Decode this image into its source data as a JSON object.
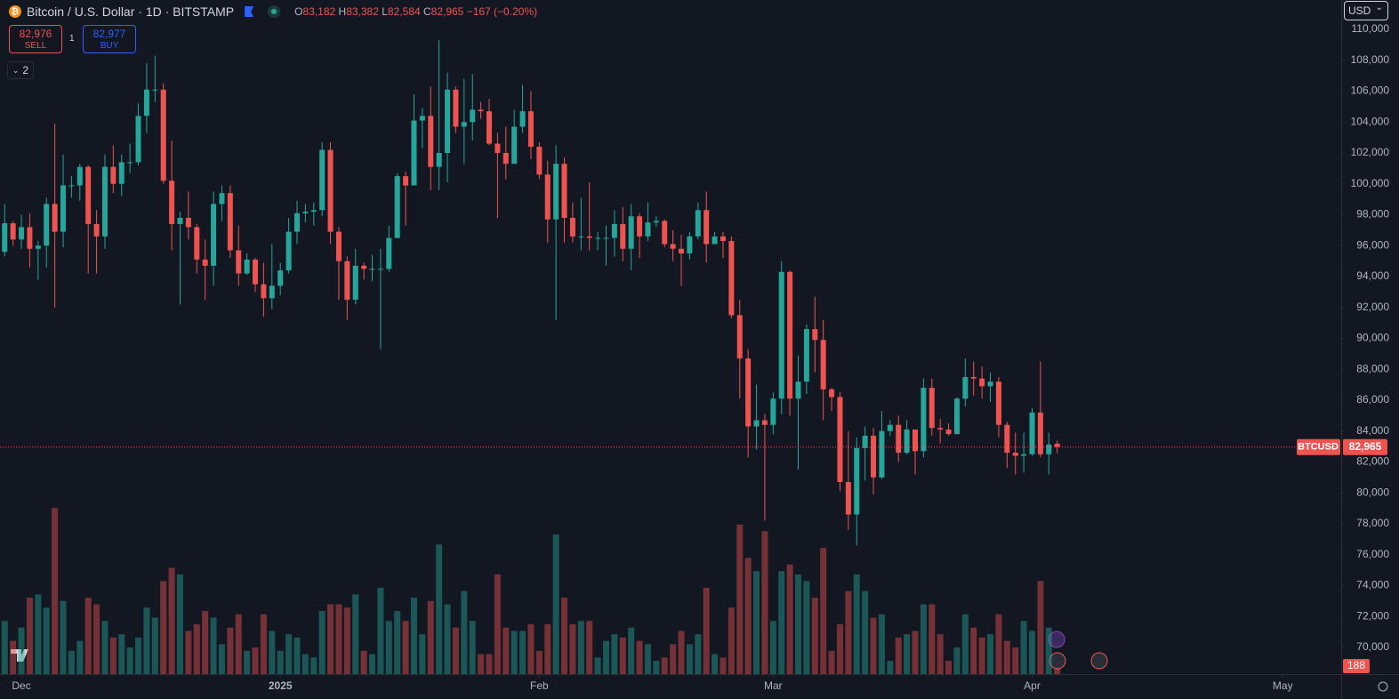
{
  "header": {
    "title": "Bitcoin / U.S. Dollar · 1D · BITSTAMP",
    "open_key": "O",
    "open": "83,182",
    "high_key": "H",
    "high": "83,382",
    "low_key": "L",
    "low": "82,584",
    "close_key": "C",
    "close": "82,965",
    "change": "−167 (−0.20%)"
  },
  "trade": {
    "sell_price": "82,976",
    "sell_label": "SELL",
    "spread": "1",
    "buy_price": "82,977",
    "buy_label": "BUY"
  },
  "indicators": {
    "count": "2"
  },
  "currency": "USD",
  "chart_data": {
    "type": "candlestick",
    "up_color": "#26a69a",
    "down_color": "#ef5350",
    "open": [
      95600,
      97450,
      96400,
      97200,
      95800,
      96000,
      98700,
      96900,
      99900,
      99900,
      101100,
      97400,
      96600,
      101100,
      100000,
      101400,
      101400,
      104400,
      106100,
      106100,
      100200,
      97400,
      97800,
      97200,
      95100,
      94700,
      98700,
      99400,
      95700,
      94200,
      95100,
      93500,
      92600,
      93400,
      94400,
      96900,
      98100,
      98200,
      98300,
      102200,
      96900,
      95000,
      92500,
      94700,
      94500,
      94500,
      94500,
      96500,
      100500,
      99900,
      104100,
      104400,
      101100,
      102000,
      106100,
      103700,
      104000,
      104800,
      104700,
      102600,
      102000,
      101300,
      103700,
      104700,
      102400,
      100600,
      97700,
      101300,
      97800,
      96600,
      96600,
      96500,
      96500,
      96500,
      97400,
      95800,
      97900,
      96600,
      97500,
      97600,
      96100,
      95800,
      95500,
      96600,
      98300,
      96100,
      96600,
      96300,
      91500,
      88700,
      84300,
      84700,
      84400,
      86100,
      94300,
      86100,
      87200,
      90600,
      89900,
      86700,
      86200,
      80700,
      78600,
      82900,
      83700,
      81000,
      84000,
      84400,
      82600,
      84100,
      82700,
      86800,
      84200,
      84100,
      83800,
      86100,
      87500,
      87400,
      86900,
      87200,
      84400,
      82600,
      82400,
      82500,
      85200,
      82500,
      83182
    ],
    "high": [
      98700,
      97600,
      98000,
      98100,
      96300,
      99100,
      103900,
      101900,
      100500,
      101300,
      101200,
      98300,
      101900,
      102500,
      101900,
      102600,
      105200,
      107800,
      108300,
      106500,
      102800,
      98200,
      99500,
      97400,
      96400,
      99500,
      99900,
      99900,
      97300,
      95500,
      95200,
      94900,
      96100,
      94900,
      97800,
      98900,
      98700,
      98800,
      102700,
      102700,
      97200,
      95300,
      95800,
      94900,
      95400,
      95800,
      97300,
      100700,
      100800,
      105800,
      104900,
      106300,
      109300,
      107200,
      106300,
      106800,
      107100,
      105300,
      105500,
      103300,
      103700,
      104800,
      106400,
      106000,
      102700,
      101500,
      102500,
      101700,
      98800,
      99100,
      100100,
      96900,
      97300,
      98300,
      98500,
      98700,
      98100,
      98800,
      97900,
      97700,
      97000,
      96700,
      96900,
      98800,
      99500,
      96900,
      96900,
      96600,
      92500,
      89300,
      87000,
      85100,
      86500,
      95000,
      94400,
      88900,
      90900,
      92700,
      91200,
      86800,
      86500,
      84000,
      83600,
      84300,
      84200,
      85300,
      84700,
      85000,
      84700,
      84100,
      87400,
      87400,
      84800,
      84500,
      86200,
      88700,
      88500,
      88200,
      87800,
      87500,
      84600,
      83900,
      83900,
      85500,
      88500,
      83900,
      83382
    ],
    "low": [
      95300,
      96000,
      95800,
      94600,
      93800,
      94600,
      92000,
      95900,
      99100,
      98900,
      94200,
      94200,
      95800,
      99400,
      99200,
      100700,
      101200,
      103300,
      105300,
      100000,
      95700,
      92200,
      96400,
      94200,
      92500,
      93400,
      97600,
      95200,
      93400,
      94100,
      93000,
      91400,
      91900,
      92800,
      94200,
      96100,
      97500,
      97300,
      97900,
      96100,
      92500,
      91200,
      92200,
      93800,
      93700,
      89300,
      94300,
      96500,
      97300,
      99900,
      102300,
      99600,
      99600,
      100100,
      103300,
      101300,
      102800,
      104200,
      102500,
      97800,
      100300,
      101300,
      103300,
      101600,
      100300,
      96200,
      91200,
      96200,
      96200,
      95700,
      95700,
      95700,
      94700,
      95300,
      95000,
      94400,
      95200,
      96300,
      97200,
      95900,
      95000,
      93400,
      95100,
      96400,
      94900,
      96100,
      95200,
      91300,
      86100,
      82300,
      82800,
      78200,
      83800,
      85100,
      85000,
      81500,
      86400,
      87800,
      84700,
      85300,
      80100,
      77600,
      76600,
      80800,
      79900,
      80900,
      83700,
      82000,
      82500,
      81200,
      82300,
      83700,
      83200,
      83700,
      83800,
      85600,
      86300,
      86100,
      85900,
      83600,
      81600,
      81200,
      81300,
      82400,
      82300,
      81200,
      82584
    ],
    "close": [
      97450,
      96400,
      97200,
      95800,
      96000,
      98700,
      96900,
      99900,
      99900,
      101100,
      97400,
      96600,
      101100,
      100000,
      101400,
      101400,
      104400,
      106100,
      106100,
      100200,
      97400,
      97800,
      97200,
      95100,
      94700,
      98700,
      99400,
      95700,
      94200,
      95100,
      93500,
      92600,
      93400,
      94400,
      96900,
      98100,
      98200,
      98300,
      102200,
      96900,
      95000,
      92500,
      94700,
      94500,
      94500,
      94500,
      96500,
      100500,
      99900,
      104100,
      104400,
      101100,
      102000,
      106100,
      103700,
      104000,
      104800,
      104700,
      102600,
      102000,
      101300,
      103700,
      104700,
      102400,
      100600,
      97700,
      101300,
      97800,
      96600,
      96600,
      96500,
      96500,
      96500,
      97400,
      95800,
      97900,
      96600,
      97500,
      97600,
      96100,
      95800,
      95500,
      96600,
      98300,
      96100,
      96600,
      96300,
      91500,
      88700,
      84300,
      84700,
      84400,
      86100,
      94300,
      86100,
      87200,
      90600,
      89900,
      86700,
      86200,
      80700,
      78600,
      82900,
      83700,
      81000,
      84000,
      84400,
      82600,
      84100,
      82700,
      86800,
      84200,
      84100,
      83800,
      86100,
      87500,
      87400,
      86900,
      87200,
      84400,
      82600,
      82400,
      82500,
      85200,
      82500,
      83132,
      82965
    ],
    "volume": [
      1600,
      1000,
      1400,
      2300,
      2400,
      2000,
      5000,
      2200,
      700,
      1000,
      2300,
      2100,
      1600,
      1100,
      1200,
      800,
      1100,
      2000,
      1700,
      2800,
      3200,
      3000,
      1300,
      1500,
      1900,
      1700,
      900,
      1400,
      1800,
      700,
      800,
      1800,
      1300,
      700,
      1200,
      1100,
      600,
      500,
      1900,
      2100,
      2100,
      2000,
      2400,
      700,
      600,
      2600,
      1600,
      1900,
      1600,
      2300,
      1200,
      2200,
      3900,
      2100,
      1400,
      2500,
      1600,
      600,
      600,
      3000,
      1400,
      1300,
      1300,
      1500,
      700,
      1500,
      4200,
      2300,
      1500,
      1600,
      1600,
      500,
      1000,
      1200,
      1100,
      1400,
      1000,
      900,
      400,
      500,
      900,
      1300,
      900,
      1200,
      2600,
      600,
      500,
      2000,
      4500,
      3500,
      3100,
      4300,
      1600,
      3100,
      3300,
      3000,
      2800,
      2300,
      3800,
      700,
      1500,
      2500,
      3000,
      2500,
      1700,
      1800,
      400,
      1100,
      1200,
      1300,
      2100,
      2100,
      1200,
      400,
      800,
      1800,
      1400,
      1100,
      1200,
      1800,
      1000,
      800,
      1600,
      1300,
      2800,
      1400,
      188
    ],
    "ylim": [
      68270,
      111900
    ],
    "yticks": [
      {
        "value": 70000,
        "label": "70,000"
      },
      {
        "value": 72000,
        "label": "72,000"
      },
      {
        "value": 74000,
        "label": "74,000"
      },
      {
        "value": 76000,
        "label": "76,000"
      },
      {
        "value": 78000,
        "label": "78,000"
      },
      {
        "value": 80000,
        "label": "80,000"
      },
      {
        "value": 82000,
        "label": "82,000"
      },
      {
        "value": 84000,
        "label": "84,000"
      },
      {
        "value": 86000,
        "label": "86,000"
      },
      {
        "value": 88000,
        "label": "88,000"
      },
      {
        "value": 90000,
        "label": "90,000"
      },
      {
        "value": 92000,
        "label": "92,000"
      },
      {
        "value": 94000,
        "label": "94,000"
      },
      {
        "value": 96000,
        "label": "96,000"
      },
      {
        "value": 98000,
        "label": "98,000"
      },
      {
        "value": 100000,
        "label": "100,000"
      },
      {
        "value": 102000,
        "label": "102,000"
      },
      {
        "value": 104000,
        "label": "104,000"
      },
      {
        "value": 106000,
        "label": "106,000"
      },
      {
        "value": 108000,
        "label": "108,000"
      },
      {
        "value": 110000,
        "label": "110,000"
      }
    ],
    "vlim": [
      0,
      5300
    ],
    "xlim": [
      -0.56,
      160
    ],
    "xticks": [
      {
        "value": 2,
        "label": "Dec"
      },
      {
        "value": 33,
        "label": "2025"
      },
      {
        "value": 64,
        "label": "Feb"
      },
      {
        "value": 92,
        "label": "Mar"
      },
      {
        "value": 123,
        "label": "Apr"
      },
      {
        "value": 153,
        "label": "May"
      }
    ],
    "last_price_name": "BTCUSD",
    "last_price_label": "82,965",
    "last_volume_label": "188"
  }
}
